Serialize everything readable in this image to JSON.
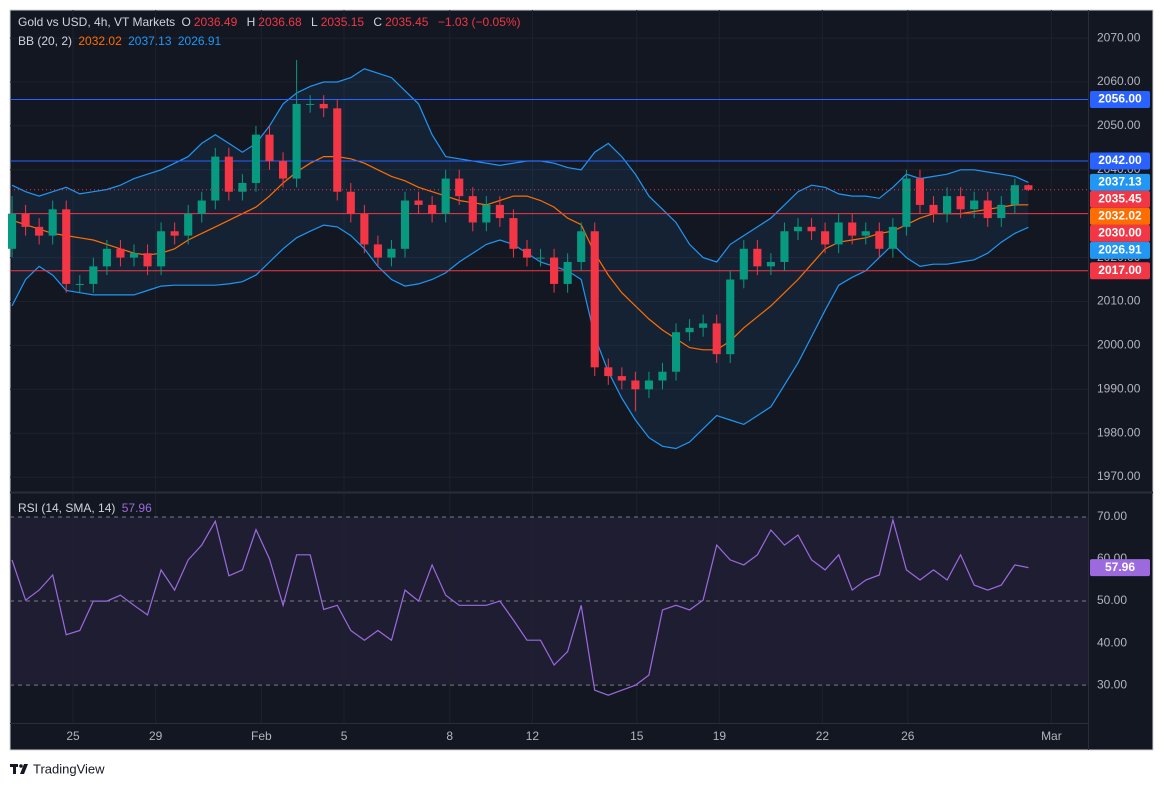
{
  "chart_data": {
    "type": "candlestick",
    "title": "Gold vs USD, 4h, VT Markets",
    "ohlc_labels": [
      "O",
      "H",
      "L",
      "C"
    ],
    "change": "−1.03 (−0.05%)",
    "up_color": "#089981",
    "down_color": "#f23645",
    "open": [
      2022,
      2030,
      2027,
      2025,
      2031,
      2014,
      2014,
      2018,
      2022,
      2020,
      2021,
      2018,
      2026,
      2025,
      2030,
      2033,
      2043,
      2035,
      2037,
      2048,
      2042,
      2038,
      2055,
      2055,
      2054,
      2035,
      2030,
      2023,
      2020,
      2022,
      2033,
      2032,
      2030,
      2038,
      2034,
      2028,
      2032,
      2029,
      2022,
      2020,
      2020,
      2014,
      2019,
      2026,
      1995,
      1993,
      1992,
      1990,
      1992,
      1994,
      2003,
      2004,
      2005,
      1998,
      2015,
      2022,
      2018,
      2019,
      2026,
      2027,
      2026,
      2023,
      2028,
      2025,
      2026,
      2022,
      2027,
      2038,
      2032,
      2030,
      2034,
      2031,
      2033,
      2029,
      2032,
      2036.49
    ],
    "high": [
      2034,
      2032,
      2029,
      2033,
      2033,
      2016,
      2020,
      2024,
      2024,
      2023,
      2023,
      2028,
      2028,
      2032,
      2035,
      2045,
      2045,
      2039,
      2050,
      2050,
      2044,
      2065,
      2057,
      2057,
      2056,
      2037,
      2032,
      2025,
      2024,
      2035,
      2035,
      2034,
      2040,
      2040,
      2036,
      2034,
      2034,
      2031,
      2024,
      2022,
      2022,
      2021,
      2028,
      2028,
      1997,
      1995,
      1994,
      1994,
      1996,
      2005,
      2006,
      2007,
      2007,
      2017,
      2024,
      2024,
      2021,
      2028,
      2029,
      2029,
      2028,
      2030,
      2030,
      2028,
      2028,
      2029,
      2040,
      2040,
      2034,
      2036,
      2036,
      2035,
      2035,
      2034,
      2038,
      2036.68
    ],
    "low": [
      2020,
      2025,
      2023,
      2023,
      2012,
      2012,
      2012,
      2016,
      2018,
      2018,
      2016,
      2016,
      2023,
      2023,
      2028,
      2031,
      2033,
      2033,
      2035,
      2040,
      2036,
      2036,
      2053,
      2052,
      2033,
      2028,
      2021,
      2018,
      2018,
      2020,
      2030,
      2028,
      2028,
      2032,
      2026,
      2026,
      2027,
      2020,
      2018,
      2018,
      2012,
      2012,
      2017,
      1993,
      1991,
      1990,
      1985,
      1988,
      1990,
      1992,
      2001,
      2002,
      1996,
      1996,
      2013,
      2016,
      2016,
      2017,
      2024,
      2024,
      2021,
      2021,
      2023,
      2023,
      2020,
      2020,
      2025,
      2030,
      2028,
      2028,
      2029,
      2029,
      2027,
      2027,
      2030,
      2035.15
    ],
    "close": [
      2030,
      2027,
      2025,
      2031,
      2014,
      2014,
      2018,
      2022,
      2020,
      2021,
      2018,
      2026,
      2025,
      2030,
      2033,
      2043,
      2035,
      2037,
      2048,
      2042,
      2038,
      2055,
      2055,
      2054,
      2035,
      2030,
      2023,
      2020,
      2022,
      2033,
      2032,
      2030,
      2038,
      2034,
      2028,
      2032,
      2029,
      2022,
      2020,
      2020,
      2014,
      2019,
      2026,
      1995,
      1993,
      1992,
      1990,
      1992,
      1994,
      2003,
      2004,
      2005,
      1998,
      2015,
      2022,
      2018,
      2019,
      2026,
      2027,
      2026,
      2023,
      2028,
      2025,
      2026,
      2022,
      2027,
      2038,
      2032,
      2030,
      2034,
      2031,
      2033,
      2029,
      2032,
      2036.49,
      2035.45
    ],
    "bb": {
      "name": "BB (20, 2)",
      "fill_color": "rgba(33,150,243,0.09)",
      "basis": {
        "color": "#ff6d00",
        "values": [
          2028.5,
          2027.5,
          2026.5,
          2025.5,
          2025,
          2024.5,
          2024,
          2023,
          2022,
          2021,
          2020.6,
          2021,
          2022,
          2024,
          2025.5,
          2027,
          2028.5,
          2030,
          2031.5,
          2034,
          2037,
          2039.5,
          2041.5,
          2043,
          2043,
          2042.5,
          2041.5,
          2040,
          2038.5,
          2037.5,
          2036,
          2035,
          2034,
          2033,
          2032.5,
          2032,
          2033,
          2034,
          2034,
          2033,
          2031.5,
          2029,
          2027.5,
          2021,
          2016,
          2012,
          2009,
          2006,
          2003.5,
          2001.5,
          1999.5,
          1999,
          1999,
          2001,
          2004,
          2006.5,
          2009,
          2012,
          2015,
          2018.5,
          2022,
          2023.5,
          2024,
          2024.5,
          2025.5,
          2026,
          2027.5,
          2029,
          2030,
          2030,
          2030,
          2030.5,
          2031,
          2031.5,
          2032,
          2032.02
        ]
      },
      "upper": {
        "color": "#2196f3",
        "values": [
          2036.5,
          2035,
          2034,
          2035,
          2036,
          2034.5,
          2035,
          2035.5,
          2036.5,
          2038,
          2039,
          2040,
          2041.5,
          2043,
          2046,
          2048,
          2046,
          2044,
          2046,
          2050,
          2055,
          2057.5,
          2059,
          2060,
          2060,
          2061,
          2063,
          2062,
          2061,
          2058,
          2055,
          2048,
          2043,
          2042.5,
          2042,
          2041.5,
          2041,
          2041.5,
          2042,
          2042,
          2041.5,
          2040.5,
          2040,
          2044,
          2046,
          2043,
          2039,
          2034,
          2031,
          2028,
          2023,
          2020,
          2019,
          2023,
          2025,
          2027,
          2029,
          2032,
          2035,
          2036.5,
          2036,
          2034.5,
          2034,
          2034,
          2033.5,
          2036,
          2039,
          2038,
          2038.5,
          2039,
          2040,
          2040,
          2039.5,
          2039,
          2038.5,
          2037.13
        ]
      },
      "lower": {
        "color": "#2196f3",
        "values": [
          2009,
          2015,
          2018,
          2016,
          2012.5,
          2012,
          2011.5,
          2011.5,
          2011.5,
          2011.5,
          2012.5,
          2013.5,
          2013.7,
          2013.7,
          2013.7,
          2013.7,
          2014,
          2014.5,
          2016,
          2019,
          2022,
          2024.5,
          2026,
          2027.4,
          2027,
          2025,
          2022,
          2018,
          2015,
          2013.5,
          2014,
          2015,
          2016.5,
          2019,
          2021,
          2023,
          2024,
          2023,
          2021,
          2019,
          2018,
          2017,
          2015,
          2002,
          1994,
          1988,
          1983,
          1979,
          1977,
          1976.5,
          1978,
          1981,
          1984,
          1983,
          1982,
          1984,
          1986,
          1991,
          1996,
          2002,
          2008,
          2013.7,
          2015.5,
          2017,
          2020,
          2023,
          2020,
          2018,
          2018.5,
          2018.5,
          2019,
          2019.5,
          2021,
          2023.5,
          2025.5,
          2026.91
        ]
      }
    },
    "xlim": [
      -0.15,
      79.4
    ],
    "xticks": [
      {
        "value": 4.5,
        "label": "25"
      },
      {
        "value": 10.6,
        "label": "29"
      },
      {
        "value": 18.4,
        "label": "Feb"
      },
      {
        "value": 24.5,
        "label": "5"
      },
      {
        "value": 32.3,
        "label": "8"
      },
      {
        "value": 38.4,
        "label": "12"
      },
      {
        "value": 46.1,
        "label": "15"
      },
      {
        "value": 52.2,
        "label": "19"
      },
      {
        "value": 59.8,
        "label": "22"
      },
      {
        "value": 66.1,
        "label": "26"
      },
      {
        "value": 76.7,
        "label": "Mar"
      }
    ],
    "ylim": [
      1966.6,
      2076.4
    ],
    "yticks": [
      {
        "value": 2070,
        "label": "2070.00"
      },
      {
        "value": 2060,
        "label": "2060.00"
      },
      {
        "value": 2050,
        "label": "2050.00"
      },
      {
        "value": 2040,
        "label": "2040.00"
      },
      {
        "value": 2030,
        "label": "2030.00"
      },
      {
        "value": 2020,
        "label": "2020.00"
      },
      {
        "value": 2010,
        "label": "2010.00"
      },
      {
        "value": 2000,
        "label": "2000.00"
      },
      {
        "value": 1990,
        "label": "1990.00"
      },
      {
        "value": 1980,
        "label": "1980.00"
      },
      {
        "value": 1970,
        "label": "1970.00"
      }
    ],
    "grid": true,
    "levels": [
      {
        "value": 2056,
        "label": "2056.00",
        "color": "#2962ff"
      },
      {
        "value": 2042,
        "label": "2042.00",
        "color": "#2962ff"
      },
      {
        "value": 2030,
        "label": "2030.00",
        "color": "#f23645"
      },
      {
        "value": 2017,
        "label": "2017.00",
        "color": "#f23645"
      }
    ],
    "rsi": {
      "name": "RSI (14, SMA, 14)",
      "color": "#9c6ade",
      "band_color": "rgba(126,87,194,0.1)",
      "values": [
        59.8,
        50.2,
        52.6,
        56.2,
        42,
        43,
        50,
        50,
        51.4,
        49,
        46.7,
        57.4,
        52.6,
        59.8,
        63.3,
        69,
        56,
        57.4,
        67,
        60,
        49,
        61,
        61,
        48,
        49,
        43,
        40.7,
        43,
        40.7,
        52.6,
        50,
        58.6,
        51.4,
        49,
        49,
        49,
        50,
        45.5,
        40.7,
        40.7,
        34.8,
        38,
        49,
        28.8,
        27.6,
        28.8,
        30,
        32.4,
        47.9,
        49,
        47.9,
        50.2,
        63.3,
        59.8,
        58.6,
        61,
        66.9,
        63.3,
        65.7,
        59.8,
        57.4,
        61,
        52.6,
        55,
        56.2,
        69.3,
        57.4,
        55,
        57.4,
        55,
        61,
        53.8,
        52.6,
        53.8,
        58.6,
        57.96
      ],
      "ylim": [
        21,
        75.7
      ],
      "yticks": [
        {
          "value": 70,
          "label": "70.00"
        },
        {
          "value": 60,
          "label": "60.00"
        },
        {
          "value": 50,
          "label": "50.00"
        },
        {
          "value": 40,
          "label": "40.00"
        },
        {
          "value": 30,
          "label": "30.00"
        }
      ],
      "dashed_levels": [
        70,
        50,
        30
      ]
    }
  },
  "footer": {
    "brand": "TradingView"
  }
}
